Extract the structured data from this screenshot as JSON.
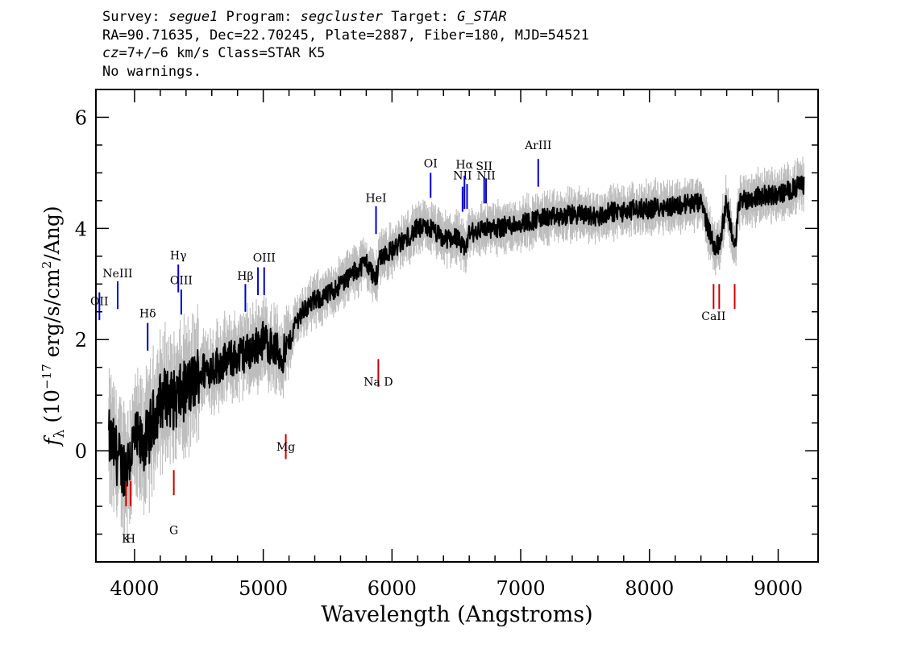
{
  "header": {
    "l1": {
      "survey_label": "Survey: ",
      "survey": "segue1",
      "program_label": " Program: ",
      "program": "segcluster",
      "target_label": " Target: ",
      "target": "G_STAR"
    },
    "l2": "RA=90.71635, Dec=22.70245, Plate=2887, Fiber=180, MJD=54521",
    "l3": {
      "cz": "cz",
      "rest": "=7+/−6 km/s Class=STAR K5"
    },
    "l4": "No warnings."
  },
  "chart_data": {
    "type": "line",
    "xlabel": "Wavelength (Angstroms)",
    "ylabel": "fλ (10^-17 erg/s/cm^2/Ang)",
    "ylabel_parts": {
      "f": "f",
      "lambda": "λ",
      "open": " (10",
      "exp1": "−17",
      "mid": " erg/s/cm",
      "exp2": "2",
      "close": "/Ang)"
    },
    "xlim": [
      3700,
      9310
    ],
    "ylim": [
      -2.0,
      6.5
    ],
    "xticks": [
      4000,
      5000,
      6000,
      7000,
      8000,
      9000
    ],
    "yticks": [
      0,
      2,
      4,
      6
    ],
    "colors": {
      "flux": "#000000",
      "error_band": "#bdbdbd",
      "emission": "#0000cc",
      "absorption": "#cc0000"
    },
    "series": [
      {
        "style": "noisy-line",
        "x": [
          3800,
          3850,
          3900,
          3950,
          4000,
          4050,
          4100,
          4150,
          4200,
          4250,
          4300,
          4350,
          4400,
          4450,
          4500,
          4600,
          4700,
          4800,
          4900,
          5000,
          5100,
          5150,
          5200,
          5250,
          5300,
          5400,
          5500,
          5600,
          5700,
          5800,
          5870,
          5890,
          5900,
          6000,
          6100,
          6200,
          6300,
          6400,
          6500,
          6563,
          6600,
          6700,
          6800,
          6900,
          7000,
          7100,
          7200,
          7300,
          7400,
          7500,
          7600,
          7700,
          7800,
          7900,
          8000,
          8100,
          8200,
          8300,
          8400,
          8498,
          8542,
          8600,
          8662,
          8700,
          8800,
          8900,
          9000,
          9100,
          9200
        ],
        "y": [
          0.2,
          0.0,
          -0.3,
          -0.2,
          0.2,
          0.1,
          0.2,
          0.6,
          0.9,
          1.0,
          0.9,
          1.0,
          1.1,
          1.2,
          1.4,
          1.5,
          1.6,
          1.7,
          1.8,
          2.0,
          1.8,
          1.7,
          1.9,
          2.3,
          2.5,
          2.7,
          2.8,
          3.0,
          3.2,
          3.4,
          3.1,
          3.2,
          3.5,
          3.6,
          3.8,
          4.0,
          4.0,
          3.8,
          3.85,
          3.6,
          3.9,
          4.0,
          4.0,
          4.05,
          4.1,
          4.15,
          4.2,
          4.2,
          4.25,
          4.25,
          4.2,
          4.3,
          4.3,
          4.35,
          4.35,
          4.4,
          4.4,
          4.45,
          4.45,
          3.7,
          3.7,
          4.5,
          3.6,
          4.5,
          4.55,
          4.6,
          4.6,
          4.7,
          4.8
        ]
      }
    ],
    "line_labels": [
      {
        "label": "OII",
        "wave": 3727,
        "color": "emission",
        "tip": 2.35,
        "len": 0.5,
        "text": "OII",
        "text_y": 2.62
      },
      {
        "label": "NeIII",
        "wave": 3869,
        "color": "emission",
        "tip": 2.55,
        "len": 0.5,
        "text": "NeIII",
        "text_y": 3.12
      },
      {
        "label": "Hδ",
        "wave": 4102,
        "color": "emission",
        "tip": 1.8,
        "len": 0.5,
        "text": "Hδ",
        "text_y": 2.4
      },
      {
        "label": "Hγ",
        "wave": 4340,
        "color": "emission",
        "tip": 2.85,
        "len": 0.5,
        "text": "Hγ",
        "text_y": 3.45
      },
      {
        "label": "OIII",
        "wave": 4363,
        "color": "emission",
        "tip": 2.45,
        "len": 0.45,
        "text": "OIII",
        "text_y": 3.0
      },
      {
        "label": "Hβ",
        "wave": 4861,
        "color": "emission",
        "tip": 2.5,
        "len": 0.5,
        "text": "Hβ",
        "text_y": 3.08
      },
      {
        "label": "OIII",
        "wave": 4959,
        "color": "emission",
        "tip": 2.8,
        "len": 0.5,
        "text": "",
        "text_y": 0
      },
      {
        "label": "OIII",
        "wave": 5007,
        "color": "emission",
        "tip": 2.8,
        "len": 0.5,
        "text": "OIII",
        "text_y": 3.4
      },
      {
        "label": "HeI",
        "wave": 5876,
        "color": "emission",
        "tip": 3.9,
        "len": 0.5,
        "text": "HeI",
        "text_y": 4.48
      },
      {
        "label": "OI",
        "wave": 6300,
        "color": "emission",
        "tip": 4.55,
        "len": 0.45,
        "text": "OI",
        "text_y": 5.1
      },
      {
        "label": "NII",
        "wave": 6548,
        "color": "emission",
        "tip": 4.3,
        "len": 0.45,
        "text": "NII",
        "text_y": 4.88
      },
      {
        "label": "Hα",
        "wave": 6563,
        "color": "emission",
        "tip": 4.35,
        "len": 0.6,
        "text": "Hα",
        "text_y": 5.08
      },
      {
        "label": "NII",
        "wave": 6583,
        "color": "emission",
        "tip": 4.35,
        "len": 0.45,
        "text": "",
        "text_y": 0
      },
      {
        "label": "SII",
        "wave": 6716,
        "color": "emission",
        "tip": 4.45,
        "len": 0.45,
        "text": "SII",
        "text_y": 5.05
      },
      {
        "label": "NII",
        "wave": 6731,
        "color": "emission",
        "tip": 4.45,
        "len": 0.45,
        "text": "NII",
        "text_y": 4.88
      },
      {
        "label": "ArIII",
        "wave": 7136,
        "color": "emission",
        "tip": 4.75,
        "len": 0.5,
        "text": "ArIII",
        "text_y": 5.43
      },
      {
        "label": "K",
        "wave": 3934,
        "color": "absorption",
        "tip": -1.0,
        "len": 0.45,
        "text": "K",
        "text_y": -1.65
      },
      {
        "label": "H",
        "wave": 3969,
        "color": "absorption",
        "tip": -1.0,
        "len": 0.45,
        "text": "H",
        "text_y": -1.65
      },
      {
        "label": "G",
        "wave": 4305,
        "color": "absorption",
        "tip": -0.8,
        "len": 0.45,
        "text": "G",
        "text_y": -1.5
      },
      {
        "label": "Mg",
        "wave": 5175,
        "color": "absorption",
        "tip": -0.15,
        "len": 0.45,
        "text": "Mg",
        "text_y": 0.0
      },
      {
        "label": "Na D",
        "wave": 5894,
        "color": "absorption",
        "tip": 1.15,
        "len": 0.5,
        "text": "Na D",
        "text_y": 1.17
      },
      {
        "label": "CaII",
        "wave": 8498,
        "color": "absorption",
        "tip": 2.55,
        "len": 0.45,
        "text": "CaII",
        "text_y": 2.35
      },
      {
        "label": "CaII",
        "wave": 8542,
        "color": "absorption",
        "tip": 2.55,
        "len": 0.45,
        "text": "",
        "text_y": 0
      },
      {
        "label": "CaII",
        "wave": 8662,
        "color": "absorption",
        "tip": 2.55,
        "len": 0.45,
        "text": "",
        "text_y": 0
      }
    ]
  }
}
